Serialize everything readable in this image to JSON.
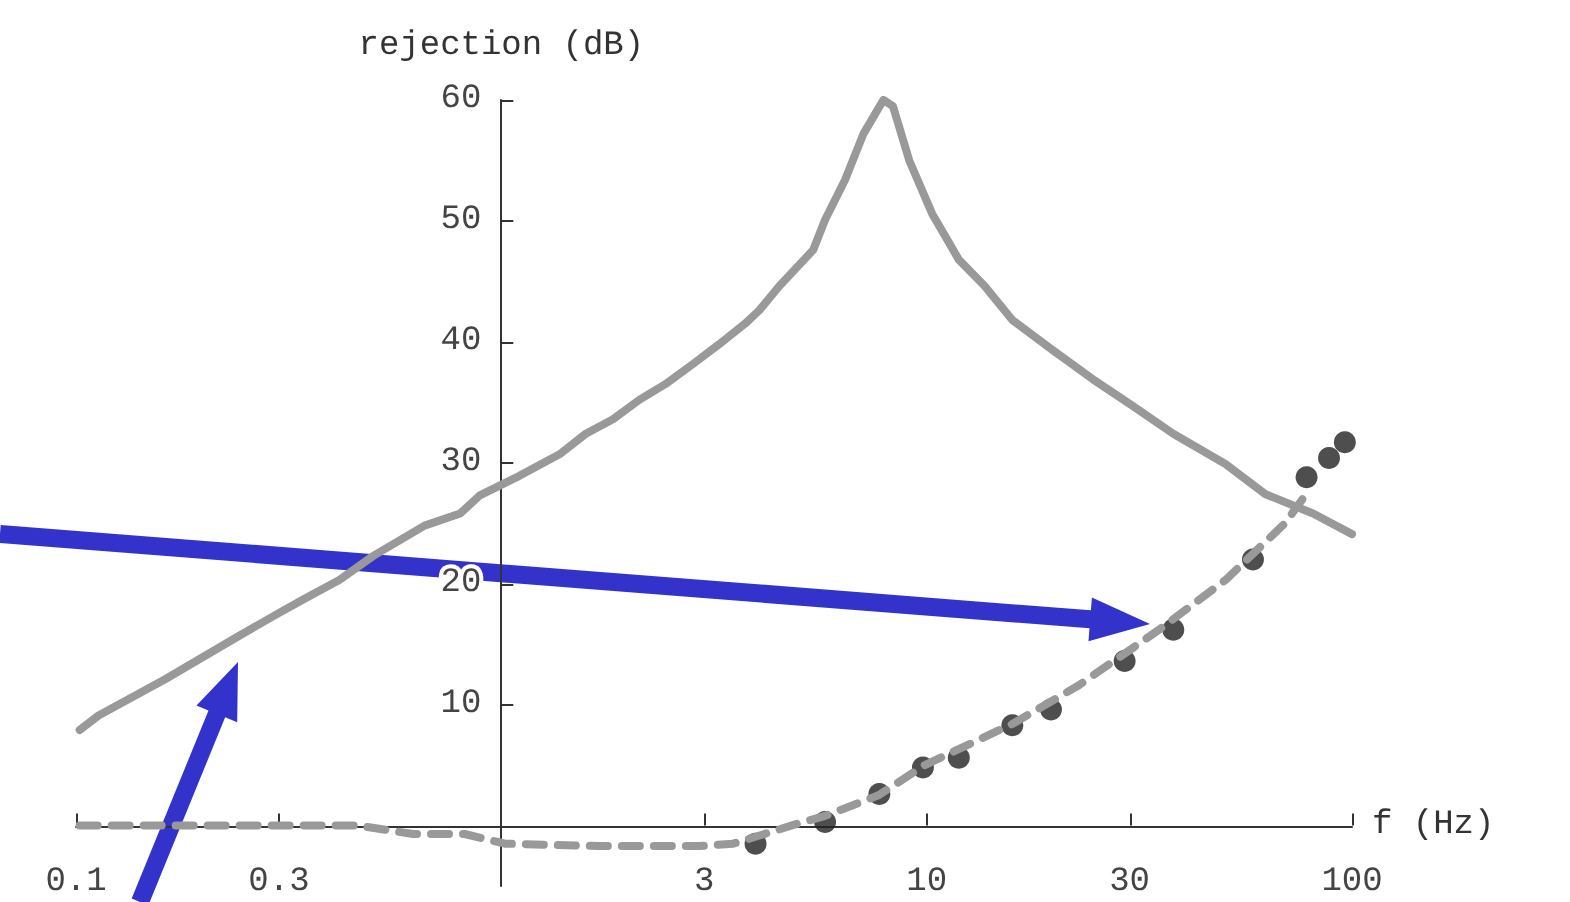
{
  "chart_data": {
    "type": "line",
    "xlabel": "f (Hz)",
    "ylabel": "rejection (dB)",
    "log": "x",
    "xlim": [
      0.1,
      100
    ],
    "xticks": [
      0.1,
      0.3,
      3,
      10,
      30,
      100
    ],
    "ylim": [
      -5,
      60
    ],
    "yticks": [
      10,
      20,
      30,
      40,
      50,
      60
    ],
    "series": [
      {
        "color": "#999999",
        "line_style": "solid",
        "x": [
          0.102,
          0.113,
          0.162,
          0.242,
          0.294,
          0.342,
          0.416,
          0.5,
          0.66,
          0.8,
          0.89,
          1.1,
          1.37,
          1.58,
          1.83,
          2.11,
          2.43,
          2.83,
          3.25,
          3.74,
          4.04,
          4.5,
          5.41,
          5.77,
          6.43,
          7.1,
          7.91,
          8.33,
          9.1,
          10.3,
          11.9,
          13.7,
          15.9,
          19.8,
          24.6,
          30.5,
          38,
          50.4,
          62.6,
          81,
          100
        ],
        "values": [
          7.9,
          9.1,
          12.1,
          15.7,
          17.4,
          18.7,
          20.3,
          22.3,
          24.8,
          25.8,
          27.3,
          28.9,
          30.7,
          32.4,
          33.6,
          35.2,
          36.5,
          38.2,
          39.8,
          41.5,
          42.6,
          44.6,
          47.6,
          50.1,
          53.4,
          57.2,
          60,
          59.5,
          55,
          50.6,
          46.8,
          44.6,
          41.8,
          39.3,
          36.9,
          34.7,
          32.4,
          29.9,
          27.4,
          25.8,
          24.1
        ]
      },
      {
        "color": "#999999",
        "line_style": "dashed",
        "x": [
          0.102,
          0.46,
          0.62,
          0.82,
          1.02,
          1.7,
          2.92,
          3.51,
          5.02,
          5.77,
          7.7,
          9.9,
          15.9,
          22.8,
          35.2,
          50.4,
          69.6,
          77.6
        ],
        "values": [
          0,
          0,
          -0.7,
          -0.7,
          -1.5,
          -1.7,
          -1.7,
          -1.5,
          0.2,
          0.8,
          2.5,
          5,
          8.4,
          11.6,
          16.2,
          20.3,
          25,
          27.3
        ]
      },
      {
        "type": "scatter",
        "color": "#222222",
        "marker": "circle",
        "x": [
          3.96,
          5.77,
          7.74,
          9.8,
          11.9,
          15.9,
          19.6,
          29.2,
          38,
          58.5,
          78.2,
          88.3,
          96.2
        ],
        "values": [
          -1.5,
          0.3,
          2.6,
          4.8,
          5.6,
          8.3,
          9.6,
          13.6,
          16.2,
          22,
          28.8,
          30.4,
          31.7
        ]
      }
    ]
  }
}
